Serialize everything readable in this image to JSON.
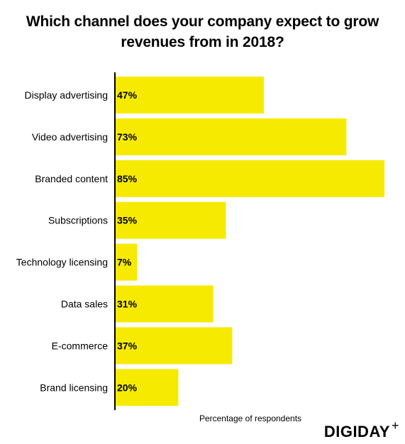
{
  "chart_data": {
    "type": "bar",
    "orientation": "horizontal",
    "title_line1": "Which channel does your company expect to grow",
    "title_line2": "revenues from in 2018?",
    "xlabel": "Percentage of respondents",
    "categories": [
      "Display advertising",
      "Video advertising",
      "Branded content",
      "Subscriptions",
      "Technology licensing",
      "Data sales",
      "E-commerce",
      "Brand licensing"
    ],
    "values": [
      47,
      73,
      85,
      35,
      7,
      31,
      37,
      20
    ],
    "value_labels": [
      "47%",
      "73%",
      "85%",
      "35%",
      "7%",
      "31%",
      "37%",
      "20%"
    ],
    "xlim": [
      0,
      85
    ],
    "grid": false,
    "legend": "none",
    "bar_color": "#f6eb00"
  },
  "brand": {
    "logo_text": "DIGIDAY",
    "logo_mark": "+"
  }
}
